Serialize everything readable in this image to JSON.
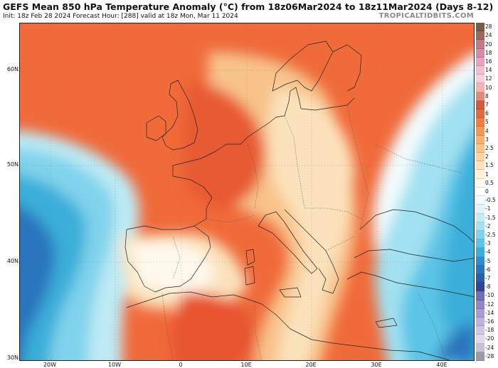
{
  "header": {
    "title": "GEFS Mean 850 hPa Temperature Anomaly (°C) from 18z06Mar2024 to 18z11Mar2024 (Days 8-12)",
    "subtitle": "Init: 18z Feb 28 2024   Forecast Hour: [288]   valid at 18z Mon, Mar 11 2024",
    "brand": "TROPICALTIDBITS.COM"
  },
  "axes": {
    "lat_labels": [
      "60N",
      "50N",
      "40N",
      "30N"
    ],
    "lon_labels": [
      "20W",
      "10W",
      "0",
      "10E",
      "20E",
      "30E",
      "40E"
    ]
  },
  "colorbar": {
    "labels": [
      "28",
      "24",
      "20",
      "18",
      "16",
      "14",
      "12",
      "10",
      "8",
      "7",
      "6",
      "5",
      "4",
      "3",
      "2.5",
      "2",
      "1.5",
      "1",
      "0.5",
      "0",
      "-0.5",
      "-1",
      "-1.5",
      "-2",
      "-2.5",
      "-3",
      "-4",
      "-5",
      "-6",
      "-7",
      "-8",
      "-10",
      "-12",
      "-14",
      "-16",
      "-18",
      "-20",
      "-24",
      "-28"
    ],
    "colors": [
      "#7a5a48",
      "#9a6a58",
      "#c07a8a",
      "#d98aa6",
      "#e6a3bd",
      "#f0bfd0",
      "#f3d0dc",
      "#f0b5b0",
      "#e08a78",
      "#d05a3c",
      "#e2683e",
      "#ef7d45",
      "#f4985a",
      "#f7b070",
      "#f8c38a",
      "#fad4a2",
      "#fbe2bb",
      "#fdf0d6",
      "#fff8ec",
      "#ffffff",
      "#f2fbfd",
      "#dff4fa",
      "#c3ecf6",
      "#a2e1f1",
      "#7fd3ec",
      "#5cc4e6",
      "#3aaed9",
      "#2a8fcc",
      "#2a74bd",
      "#2c5ca8",
      "#2f4793",
      "#6e6fb4",
      "#8f86c3",
      "#a99dd0",
      "#bfb2db",
      "#d2c6e5",
      "#e2d8ee",
      "#c7c2cf",
      "#9d98a6"
    ]
  }
}
